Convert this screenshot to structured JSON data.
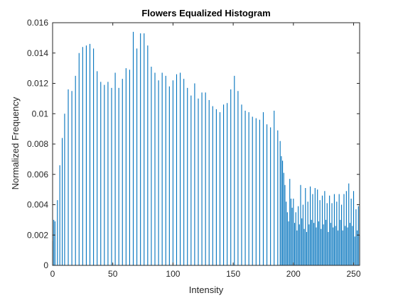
{
  "chart_data": {
    "type": "bar",
    "title": "Flowers Equalized Histogram",
    "xlabel": "Intensity",
    "ylabel": "Normalized Frequency",
    "xlim": [
      0,
      255
    ],
    "ylim": [
      0,
      0.016
    ],
    "xticks": [
      0,
      50,
      100,
      150,
      200,
      250
    ],
    "yticks": [
      0,
      0.002,
      0.004,
      0.006,
      0.008,
      0.01,
      0.012,
      0.014,
      0.016
    ],
    "ytick_labels": [
      "0",
      "0.002",
      "0.004",
      "0.006",
      "0.008",
      "0.01",
      "0.012",
      "0.014",
      "0.016"
    ],
    "grid": false,
    "legend": "none",
    "bar_color": "#0072BD",
    "x": [
      0,
      1,
      2,
      4,
      6,
      8,
      10,
      13,
      16,
      19,
      22,
      25,
      28,
      31,
      34,
      37,
      40,
      43,
      46,
      49,
      52,
      55,
      58,
      61,
      64,
      67,
      70,
      73,
      76,
      79,
      82,
      85,
      88,
      91,
      94,
      97,
      100,
      103,
      106,
      109,
      112,
      115,
      118,
      121,
      124,
      127,
      130,
      133,
      136,
      139,
      142,
      145,
      148,
      151,
      154,
      157,
      160,
      163,
      166,
      169,
      172,
      175,
      178,
      181,
      184,
      187,
      189,
      190,
      191,
      192,
      193,
      194,
      195,
      196,
      197,
      198,
      199,
      200,
      201,
      202,
      203,
      204,
      205,
      206,
      207,
      208,
      209,
      210,
      211,
      212,
      213,
      214,
      215,
      216,
      217,
      218,
      219,
      220,
      221,
      222,
      223,
      224,
      225,
      226,
      227,
      228,
      229,
      230,
      231,
      232,
      233,
      234,
      235,
      236,
      237,
      238,
      239,
      240,
      241,
      242,
      243,
      244,
      245,
      246,
      247,
      248,
      249,
      250,
      251,
      252,
      253,
      254,
      255
    ],
    "values": [
      0.0016,
      0.003,
      0.0029,
      0.0043,
      0.0066,
      0.0084,
      0.01,
      0.0116,
      0.0115,
      0.0125,
      0.014,
      0.0144,
      0.0145,
      0.0146,
      0.0143,
      0.0128,
      0.0121,
      0.0119,
      0.0121,
      0.0117,
      0.0127,
      0.0117,
      0.0123,
      0.013,
      0.0129,
      0.0154,
      0.0143,
      0.0153,
      0.0153,
      0.0145,
      0.0131,
      0.0127,
      0.0122,
      0.0127,
      0.0125,
      0.0118,
      0.0122,
      0.0126,
      0.0127,
      0.0123,
      0.0117,
      0.0112,
      0.012,
      0.011,
      0.0114,
      0.0114,
      0.0109,
      0.0105,
      0.0103,
      0.0101,
      0.0106,
      0.0107,
      0.0116,
      0.0125,
      0.0115,
      0.0106,
      0.0102,
      0.0101,
      0.0098,
      0.0097,
      0.0096,
      0.0101,
      0.0093,
      0.0091,
      0.0102,
      0.0089,
      0.0082,
      0.0072,
      0.0069,
      0.0061,
      0.0053,
      0.0042,
      0.0035,
      0.0029,
      0.0057,
      0.0044,
      0.0038,
      0.0044,
      0.0028,
      0.0035,
      0.0023,
      0.0039,
      0.0027,
      0.0053,
      0.0031,
      0.004,
      0.0024,
      0.0051,
      0.0022,
      0.0042,
      0.0027,
      0.0052,
      0.003,
      0.0047,
      0.0028,
      0.0051,
      0.0025,
      0.005,
      0.0029,
      0.0043,
      0.0024,
      0.0046,
      0.0027,
      0.0049,
      0.003,
      0.0041,
      0.0022,
      0.0046,
      0.0028,
      0.0041,
      0.0025,
      0.0047,
      0.0026,
      0.0042,
      0.0023,
      0.0047,
      0.003,
      0.004,
      0.0023,
      0.0047,
      0.0026,
      0.0049,
      0.0025,
      0.0054,
      0.0028,
      0.0044,
      0.0026,
      0.0049,
      0.0019,
      0.0037,
      0.0023,
      0.0039,
      0.002
    ]
  }
}
